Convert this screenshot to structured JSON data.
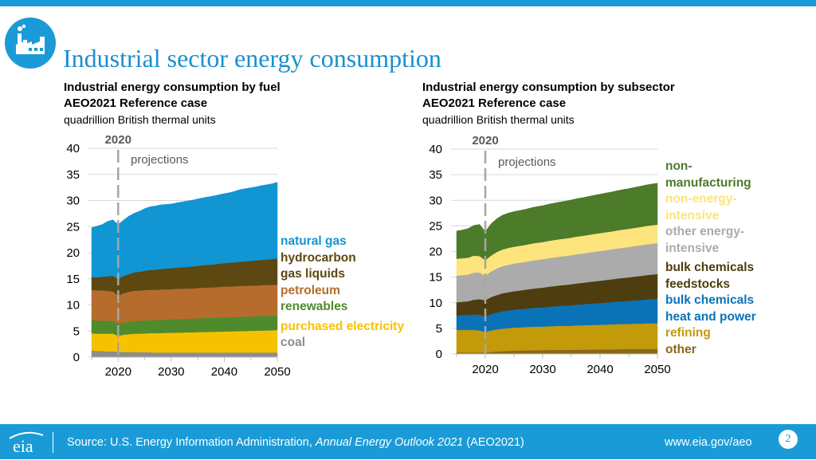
{
  "page_title": "Industrial sector energy consumption",
  "colors": {
    "brand": "#1a9bd7",
    "title": "#1a8fd0",
    "fuel": {
      "coal": "#8c8c8c",
      "purchased_electricity": "#f6c200",
      "renewables": "#4f8b2c",
      "petroleum": "#b66c2d",
      "hydrocarbon_gas_liquids": "#5c4810",
      "natural_gas": "#1195d3"
    },
    "subsector": {
      "other": "#8a6818",
      "refining": "#c39a09",
      "bulk_chemicals_heat_power": "#0a73b8",
      "bulk_chemicals_feedstocks": "#4e3d0f",
      "other_energy_intensive": "#ababab",
      "non_energy_intensive": "#fde47c",
      "non_manufacturing": "#4c7b2a"
    }
  },
  "chart_data": [
    {
      "type": "area",
      "stacked": true,
      "title": "Industrial energy consumption by fuel",
      "subtitle": "AEO2021 Reference case",
      "units": "quadrillion British thermal units",
      "x": [
        2015,
        2016,
        2017,
        2018,
        2019,
        2020,
        2021,
        2022,
        2023,
        2024,
        2025,
        2026,
        2027,
        2028,
        2029,
        2030,
        2031,
        2032,
        2033,
        2034,
        2035,
        2036,
        2037,
        2038,
        2039,
        2040,
        2041,
        2042,
        2043,
        2044,
        2045,
        2046,
        2047,
        2048,
        2049,
        2050
      ],
      "xlim": [
        2015,
        2050
      ],
      "xticks": [
        2020,
        2030,
        2040,
        2050
      ],
      "ylim": [
        0,
        40
      ],
      "yticks": [
        0,
        5,
        10,
        15,
        20,
        25,
        30,
        35,
        40
      ],
      "annotation_year": 2020,
      "annotation_year_label": "2020",
      "annotation_text": "projections",
      "grid": true,
      "series": [
        {
          "key": "coal",
          "name": "coal",
          "values": [
            1.3,
            1.2,
            1.2,
            1.1,
            1.1,
            1.0,
            1.0,
            1.0,
            1.0,
            0.95,
            0.95,
            0.95,
            0.9,
            0.9,
            0.9,
            0.9,
            0.9,
            0.9,
            0.9,
            0.9,
            0.9,
            0.9,
            0.9,
            0.9,
            0.9,
            0.9,
            0.9,
            0.9,
            0.9,
            0.9,
            0.9,
            0.9,
            0.9,
            0.9,
            0.9,
            0.9
          ]
        },
        {
          "key": "purchased_electricity",
          "name": "purchased electricity",
          "values": [
            3.3,
            3.3,
            3.3,
            3.4,
            3.4,
            3.1,
            3.3,
            3.4,
            3.5,
            3.55,
            3.6,
            3.65,
            3.7,
            3.72,
            3.75,
            3.78,
            3.8,
            3.82,
            3.85,
            3.87,
            3.9,
            3.92,
            3.95,
            3.97,
            4.0,
            4.02,
            4.05,
            4.07,
            4.1,
            4.12,
            4.15,
            4.17,
            4.2,
            4.22,
            4.25,
            4.3
          ]
        },
        {
          "key": "renewables",
          "name": "renewables",
          "values": [
            2.5,
            2.5,
            2.5,
            2.5,
            2.4,
            2.3,
            2.35,
            2.4,
            2.45,
            2.45,
            2.5,
            2.5,
            2.5,
            2.55,
            2.55,
            2.55,
            2.6,
            2.6,
            2.6,
            2.6,
            2.65,
            2.65,
            2.65,
            2.65,
            2.7,
            2.7,
            2.7,
            2.7,
            2.75,
            2.75,
            2.75,
            2.75,
            2.8,
            2.8,
            2.8,
            2.8
          ]
        },
        {
          "key": "petroleum",
          "name": "petroleum",
          "values": [
            5.8,
            5.8,
            5.8,
            5.7,
            5.7,
            5.4,
            5.6,
            5.7,
            5.8,
            5.8,
            5.8,
            5.8,
            5.8,
            5.8,
            5.8,
            5.8,
            5.8,
            5.8,
            5.8,
            5.8,
            5.8,
            5.85,
            5.85,
            5.85,
            5.85,
            5.9,
            5.9,
            5.9,
            5.9,
            5.9,
            5.9,
            5.9,
            5.9,
            5.9,
            5.9,
            5.9
          ]
        },
        {
          "key": "hydrocarbon_gas_liquids",
          "name": "hydrocarbon gas liquids",
          "values": [
            2.4,
            2.5,
            2.6,
            2.8,
            3.0,
            3.2,
            3.3,
            3.4,
            3.5,
            3.6,
            3.7,
            3.8,
            3.85,
            3.9,
            3.95,
            4.0,
            4.05,
            4.1,
            4.15,
            4.2,
            4.25,
            4.3,
            4.35,
            4.4,
            4.45,
            4.5,
            4.55,
            4.6,
            4.65,
            4.7,
            4.75,
            4.8,
            4.85,
            4.9,
            4.95,
            5.0
          ]
        },
        {
          "key": "natural_gas",
          "name": "natural gas",
          "values": [
            9.5,
            9.8,
            10.0,
            10.5,
            10.7,
            10.4,
            10.7,
            11.1,
            11.3,
            11.6,
            11.9,
            12.1,
            12.2,
            12.3,
            12.3,
            12.3,
            12.4,
            12.5,
            12.6,
            12.7,
            12.8,
            12.9,
            13.0,
            13.1,
            13.2,
            13.3,
            13.4,
            13.6,
            13.8,
            13.9,
            14.0,
            14.1,
            14.2,
            14.3,
            14.4,
            14.6
          ]
        }
      ],
      "legend": [
        {
          "key": "natural_gas",
          "label": "natural gas",
          "color": "#1195d3"
        },
        {
          "key": "hydrocarbon_gas_liquids",
          "label": "hydrocarbon gas liquids",
          "color": "#5c4810"
        },
        {
          "key": "petroleum",
          "label": "petroleum",
          "color": "#b66c2d"
        },
        {
          "key": "renewables",
          "label": "renewables",
          "color": "#4f8b2c"
        },
        {
          "key": "purchased_electricity",
          "label": "purchased electricity",
          "color": "#f6c200"
        },
        {
          "key": "coal",
          "label": "coal",
          "color": "#8c8c8c"
        }
      ]
    },
    {
      "type": "area",
      "stacked": true,
      "title": "Industrial energy consumption by subsector",
      "subtitle": "AEO2021 Reference case",
      "units": "quadrillion British thermal units",
      "x": [
        2015,
        2016,
        2017,
        2018,
        2019,
        2020,
        2021,
        2022,
        2023,
        2024,
        2025,
        2026,
        2027,
        2028,
        2029,
        2030,
        2031,
        2032,
        2033,
        2034,
        2035,
        2036,
        2037,
        2038,
        2039,
        2040,
        2041,
        2042,
        2043,
        2044,
        2045,
        2046,
        2047,
        2048,
        2049,
        2050
      ],
      "xlim": [
        2015,
        2050
      ],
      "xticks": [
        2020,
        2030,
        2040,
        2050
      ],
      "ylim": [
        0,
        40
      ],
      "yticks": [
        0,
        5,
        10,
        15,
        20,
        25,
        30,
        35,
        40
      ],
      "annotation_year": 2020,
      "annotation_year_label": "2020",
      "annotation_text": "projections",
      "grid": true,
      "series": [
        {
          "key": "other",
          "name": "other",
          "values": [
            0.3,
            0.3,
            0.3,
            0.3,
            0.3,
            0.3,
            0.4,
            0.5,
            0.55,
            0.6,
            0.65,
            0.7,
            0.7,
            0.72,
            0.75,
            0.75,
            0.78,
            0.8,
            0.8,
            0.8,
            0.82,
            0.84,
            0.85,
            0.86,
            0.88,
            0.9,
            0.9,
            0.92,
            0.93,
            0.95,
            0.96,
            0.97,
            0.98,
            0.99,
            1.0,
            1.0
          ]
        },
        {
          "key": "refining",
          "name": "refining",
          "values": [
            4.4,
            4.4,
            4.4,
            4.4,
            4.3,
            4.0,
            4.2,
            4.3,
            4.4,
            4.45,
            4.5,
            4.5,
            4.55,
            4.6,
            4.6,
            4.6,
            4.65,
            4.65,
            4.7,
            4.7,
            4.7,
            4.75,
            4.75,
            4.8,
            4.8,
            4.8,
            4.85,
            4.85,
            4.9,
            4.9,
            4.9,
            4.95,
            4.95,
            5.0,
            5.0,
            5.0
          ]
        },
        {
          "key": "bulk_chemicals_heat_power",
          "name": "bulk chemicals heat and power",
          "values": [
            2.8,
            2.9,
            2.9,
            3.0,
            3.1,
            3.0,
            3.2,
            3.3,
            3.4,
            3.45,
            3.5,
            3.55,
            3.6,
            3.65,
            3.7,
            3.75,
            3.8,
            3.85,
            3.9,
            3.95,
            4.0,
            4.05,
            4.1,
            4.15,
            4.2,
            4.25,
            4.3,
            4.35,
            4.4,
            4.45,
            4.5,
            4.55,
            4.6,
            4.65,
            4.7,
            4.75
          ]
        },
        {
          "key": "bulk_chemicals_feedstocks",
          "name": "bulk chemicals feedstocks",
          "values": [
            2.6,
            2.6,
            2.7,
            2.9,
            3.0,
            3.2,
            3.3,
            3.4,
            3.5,
            3.55,
            3.6,
            3.65,
            3.7,
            3.75,
            3.8,
            3.85,
            3.9,
            3.95,
            4.0,
            4.05,
            4.1,
            4.15,
            4.2,
            4.25,
            4.3,
            4.35,
            4.4,
            4.45,
            4.5,
            4.55,
            4.6,
            4.65,
            4.7,
            4.75,
            4.8,
            4.85
          ]
        },
        {
          "key": "other_energy_intensive",
          "name": "other energy-intensive",
          "values": [
            5.2,
            5.2,
            5.2,
            5.3,
            5.2,
            4.8,
            5.0,
            5.2,
            5.3,
            5.35,
            5.4,
            5.42,
            5.45,
            5.5,
            5.52,
            5.55,
            5.57,
            5.6,
            5.62,
            5.65,
            5.68,
            5.7,
            5.72,
            5.75,
            5.78,
            5.8,
            5.82,
            5.85,
            5.88,
            5.9,
            5.92,
            5.95,
            5.98,
            6.0,
            6.02,
            6.05
          ]
        },
        {
          "key": "non_energy_intensive",
          "name": "non-energy-intensive",
          "values": [
            3.3,
            3.3,
            3.3,
            3.3,
            3.2,
            3.0,
            3.1,
            3.2,
            3.25,
            3.3,
            3.3,
            3.3,
            3.3,
            3.32,
            3.35,
            3.35,
            3.38,
            3.4,
            3.4,
            3.4,
            3.42,
            3.45,
            3.45,
            3.45,
            3.48,
            3.5,
            3.5,
            3.5,
            3.52,
            3.55,
            3.55,
            3.55,
            3.58,
            3.6,
            3.6,
            3.6
          ]
        },
        {
          "key": "non_manufacturing",
          "name": "non-manufacturing",
          "values": [
            5.4,
            5.5,
            5.7,
            5.9,
            6.2,
            5.6,
            6.2,
            6.5,
            6.7,
            6.8,
            6.85,
            6.9,
            6.95,
            7.0,
            7.05,
            7.1,
            7.15,
            7.2,
            7.25,
            7.3,
            7.35,
            7.4,
            7.45,
            7.5,
            7.55,
            7.6,
            7.65,
            7.7,
            7.75,
            7.8,
            7.85,
            7.9,
            7.95,
            8.0,
            8.05,
            8.1
          ]
        }
      ],
      "legend": [
        {
          "key": "non_manufacturing",
          "label": "non-manufacturing",
          "color": "#4c7b2a"
        },
        {
          "key": "non_energy_intensive",
          "label": "non-energy-intensive",
          "color": "#fde47c"
        },
        {
          "key": "other_energy_intensive",
          "label": "other energy-intensive",
          "color": "#ababab"
        },
        {
          "key": "bulk_chemicals_feedstocks",
          "label": "bulk chemicals feedstocks",
          "color": "#4e3d0f"
        },
        {
          "key": "bulk_chemicals_heat_power",
          "label": "bulk chemicals heat and power",
          "color": "#0a73b8"
        },
        {
          "key": "refining",
          "label": "refining",
          "color": "#c39a09"
        },
        {
          "key": "other",
          "label": "other",
          "color": "#8a6818"
        }
      ]
    }
  ],
  "footer": {
    "source_prefix": "Source: U.S. Energy Information Administration, ",
    "source_italic": "Annual Energy Outlook 2021",
    "source_suffix": " (AEO2021)",
    "url": "www.eia.gov/aeo",
    "page_number": "2",
    "logo_text": "eia"
  }
}
